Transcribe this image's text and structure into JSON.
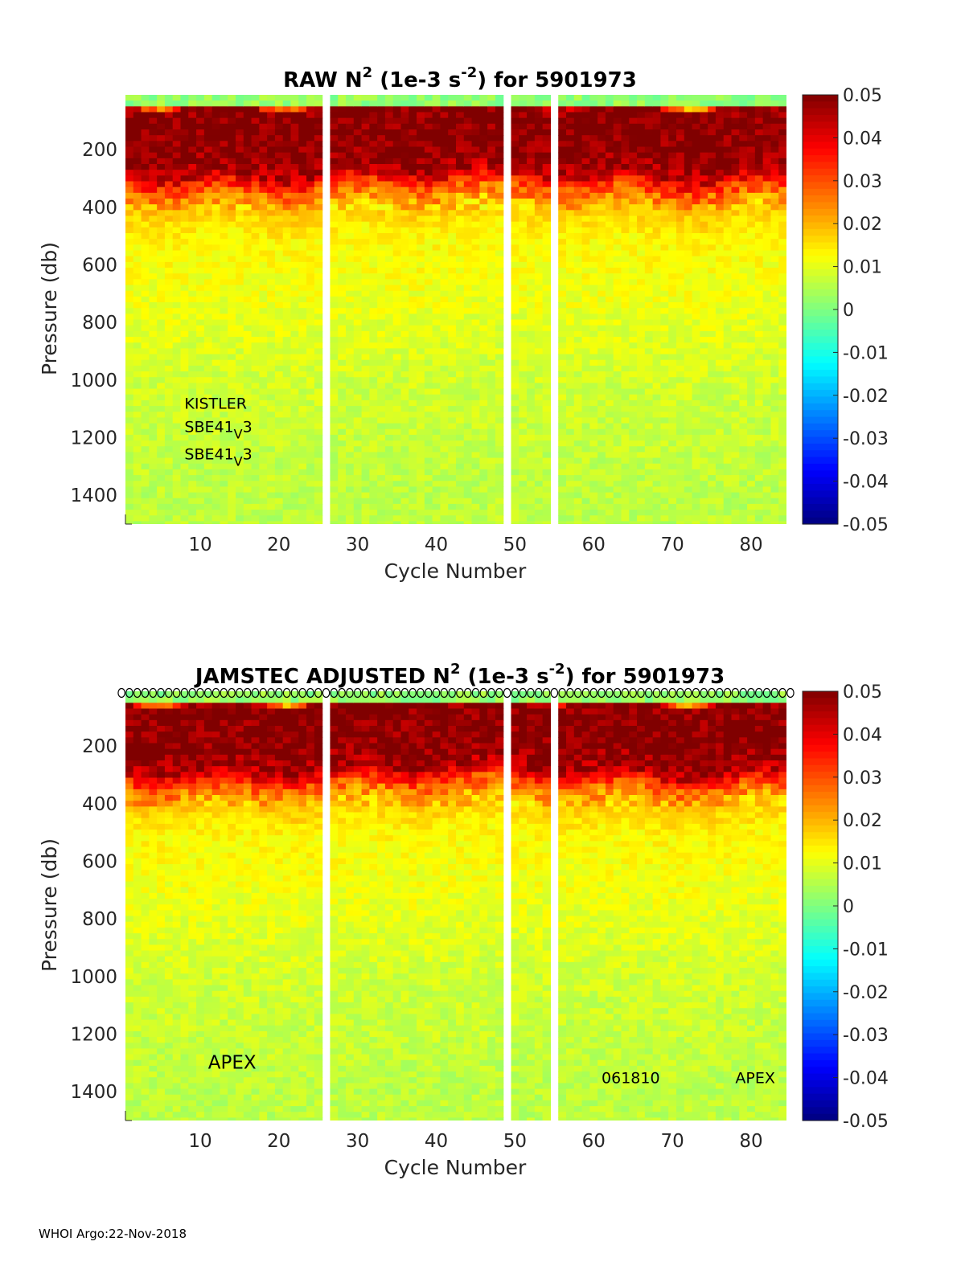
{
  "chart_data": [
    {
      "type": "heatmap",
      "title": "RAW N² (1e-3 s⁻²) for 5901973",
      "title_parts": {
        "prefix": "RAW N",
        "sup1": "2",
        "mid": " (1e-3 s",
        "sup2": "-2",
        "suffix": ") for 5901973"
      },
      "xlabel": "Cycle Number",
      "ylabel": "Pressure (db)",
      "xlim": [
        1,
        84
      ],
      "ylim": [
        1500,
        10
      ],
      "xticks": [
        10,
        20,
        30,
        40,
        50,
        60,
        70,
        80
      ],
      "yticks": [
        200,
        400,
        600,
        800,
        1000,
        1200,
        1400
      ],
      "colorbar": {
        "ticks": [
          "0.05",
          "0.04",
          "0.03",
          "0.02",
          "0.01",
          "0",
          "-0.01",
          "-0.02",
          "-0.03",
          "-0.04",
          "-0.05"
        ],
        "range": [
          -0.05,
          0.05
        ],
        "colormap": "jet"
      },
      "missing_cycles": [
        26,
        49,
        55
      ],
      "value_profile": {
        "pressure": [
          20,
          50,
          120,
          200,
          280,
          330,
          400,
          500,
          600,
          800,
          1000,
          1200,
          1400,
          1500
        ],
        "n2": [
          0.002,
          0.05,
          0.05,
          0.05,
          0.045,
          0.03,
          0.018,
          0.013,
          0.012,
          0.01,
          0.008,
          0.007,
          0.006,
          0.006
        ]
      },
      "annotations": [
        {
          "text": "KISTLER",
          "cycle": 8,
          "pressure": 1100
        },
        {
          "text": "SBE41",
          "sub": "V",
          "tail": "3",
          "cycle": 8,
          "pressure": 1180
        },
        {
          "text": "SBE41",
          "sub": "V",
          "tail": "3",
          "cycle": 8,
          "pressure": 1275
        }
      ],
      "markers": false
    },
    {
      "type": "heatmap",
      "title": "JAMSTEC  ADJUSTED N² (1e-3 s⁻²) for 5901973",
      "title_parts": {
        "prefix": "JAMSTEC  ADJUSTED N",
        "sup1": "2",
        "mid": " (1e-3 s",
        "sup2": "-2",
        "suffix": ") for 5901973"
      },
      "xlabel": "Cycle Number",
      "ylabel": "Pressure (db)",
      "xlim": [
        1,
        84
      ],
      "ylim": [
        1500,
        10
      ],
      "xticks": [
        10,
        20,
        30,
        40,
        50,
        60,
        70,
        80
      ],
      "yticks": [
        200,
        400,
        600,
        800,
        1000,
        1200,
        1400
      ],
      "colorbar": {
        "ticks": [
          "0.05",
          "0.04",
          "0.03",
          "0.02",
          "0.01",
          "0",
          "-0.01",
          "-0.02",
          "-0.03",
          "-0.04",
          "-0.05"
        ],
        "range": [
          -0.05,
          0.05
        ],
        "colormap": "jet"
      },
      "missing_cycles": [
        26,
        49,
        55
      ],
      "value_profile": {
        "pressure": [
          20,
          50,
          120,
          200,
          280,
          330,
          400,
          500,
          600,
          800,
          1000,
          1200,
          1400,
          1500
        ],
        "n2": [
          0.002,
          0.05,
          0.05,
          0.05,
          0.045,
          0.03,
          0.018,
          0.013,
          0.012,
          0.01,
          0.008,
          0.007,
          0.006,
          0.006
        ]
      },
      "annotations": [
        {
          "text": "APEX",
          "cycle": 11,
          "pressure": 1320,
          "big": true
        },
        {
          "text": "061810",
          "cycle": 61,
          "pressure": 1370
        },
        {
          "text": "APEX",
          "cycle": 78,
          "pressure": 1370
        }
      ],
      "markers": true
    }
  ],
  "footer": "WHOI Argo:22-Nov-2018"
}
